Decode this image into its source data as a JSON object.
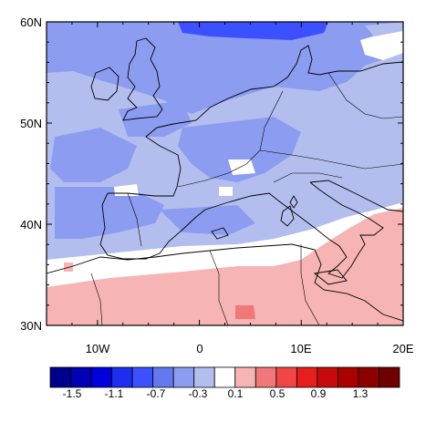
{
  "map": {
    "lat_ticks": [
      "60N",
      "50N",
      "40N",
      "30N"
    ],
    "lon_ticks": [
      "10W",
      "0",
      "10E",
      "20E"
    ],
    "extent": {
      "lon_min": -15,
      "lon_max": 20,
      "lat_min": 30,
      "lat_max": 60
    },
    "projection": "cylindrical-equidistant",
    "coastlines": true,
    "country_borders": true,
    "field_pattern": {
      "description_rows": [
        {
          "lat_from": 56,
          "lat_to": 60,
          "level": "-0.9"
        },
        {
          "lat_from": 47,
          "lat_to": 56,
          "level": "-0.5"
        },
        {
          "lat_from": 39,
          "lat_to": 47,
          "level": "-0.3"
        },
        {
          "lat_from": 35,
          "lat_to": 39,
          "level": "-0.1"
        },
        {
          "lat_from": 30,
          "lat_to": 35,
          "level": "0.3"
        }
      ]
    }
  },
  "colorbar": {
    "colors": [
      "#00008c",
      "#0000b4",
      "#0000dc",
      "#1e2ef0",
      "#3c50ff",
      "#6478f0",
      "#8c9cf0",
      "#b4beee",
      "#ffffff",
      "#f7b4b4",
      "#f07878",
      "#f04646",
      "#e61e1e",
      "#c80a0a",
      "#aa0000",
      "#8c0000",
      "#6e0000"
    ],
    "labels": [
      "-1.5",
      "-1.1",
      "-0.7",
      "-0.3",
      "0.1",
      "0.5",
      "0.9",
      "1.3"
    ]
  }
}
